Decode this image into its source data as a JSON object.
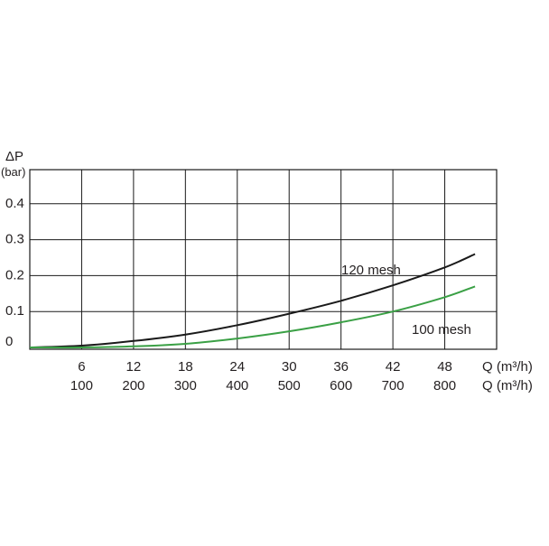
{
  "chart_data": {
    "type": "line",
    "ylabel": "ΔP",
    "yunit": "(bar)",
    "xlabel_primary": "Q (m³/h)",
    "xlabel_secondary": "Q (m³/h)",
    "x_ticks_primary": [
      "6",
      "12",
      "18",
      "24",
      "30",
      "36",
      "42",
      "48"
    ],
    "x_ticks_secondary": [
      "100",
      "200",
      "300",
      "400",
      "500",
      "600",
      "700",
      "800"
    ],
    "y_ticks": [
      "0",
      "0.1",
      "0.2",
      "0.3",
      "0.4"
    ],
    "xlim": [
      0,
      54
    ],
    "ylim": [
      -0.005,
      0.495
    ],
    "grid": true,
    "series": [
      {
        "name": "120 mesh",
        "color": "#1a1a1a",
        "x": [
          0,
          6,
          12,
          18,
          24,
          30,
          36,
          42,
          48,
          51.5
        ],
        "y": [
          0.0,
          0.005,
          0.018,
          0.036,
          0.062,
          0.094,
          0.13,
          0.173,
          0.223,
          0.26
        ]
      },
      {
        "name": "100 mesh",
        "color": "#3aa045",
        "x": [
          0,
          6,
          12,
          18,
          24,
          30,
          36,
          42,
          48,
          51.5
        ],
        "y": [
          0.0,
          0.0,
          0.003,
          0.01,
          0.025,
          0.045,
          0.07,
          0.1,
          0.14,
          0.17
        ]
      }
    ]
  }
}
